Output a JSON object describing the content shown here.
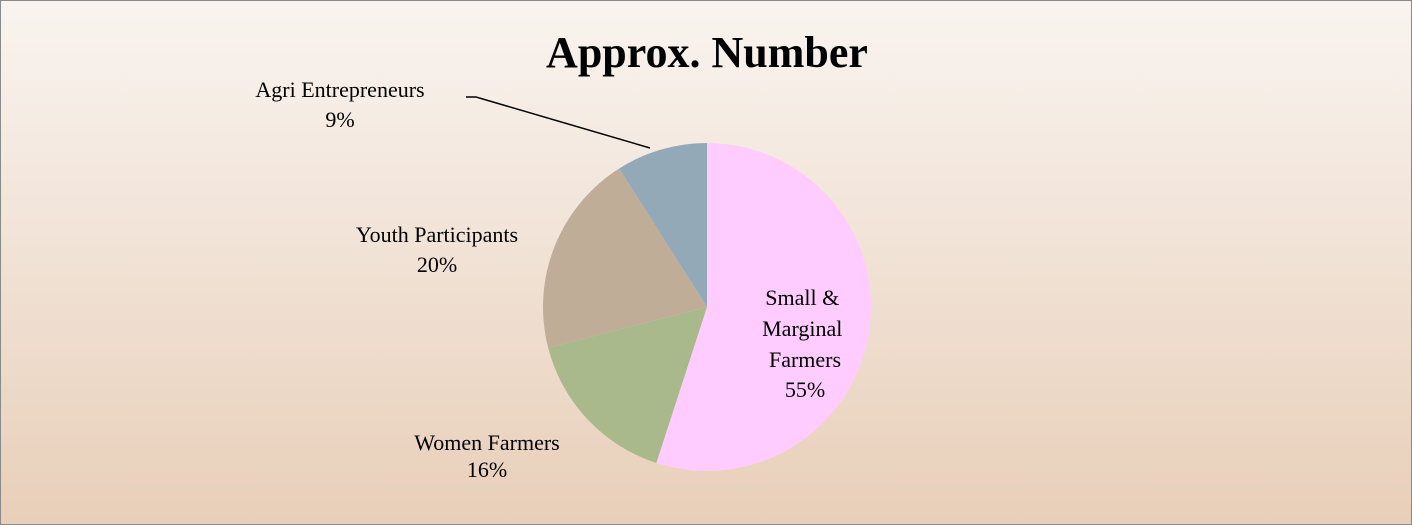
{
  "chart_data": {
    "type": "pie",
    "title": "Approx. Number",
    "categories": [
      "Small & Marginal Farmers",
      "Women Farmers",
      "Youth Participants",
      "Agri Entrepreneurs"
    ],
    "values": [
      55,
      16,
      20,
      9
    ],
    "value_labels": [
      "55%",
      "16%",
      "20%",
      "9%"
    ],
    "colors": [
      "#ffccff",
      "#a9b98c",
      "#c0ad97",
      "#94a9b8"
    ]
  }
}
